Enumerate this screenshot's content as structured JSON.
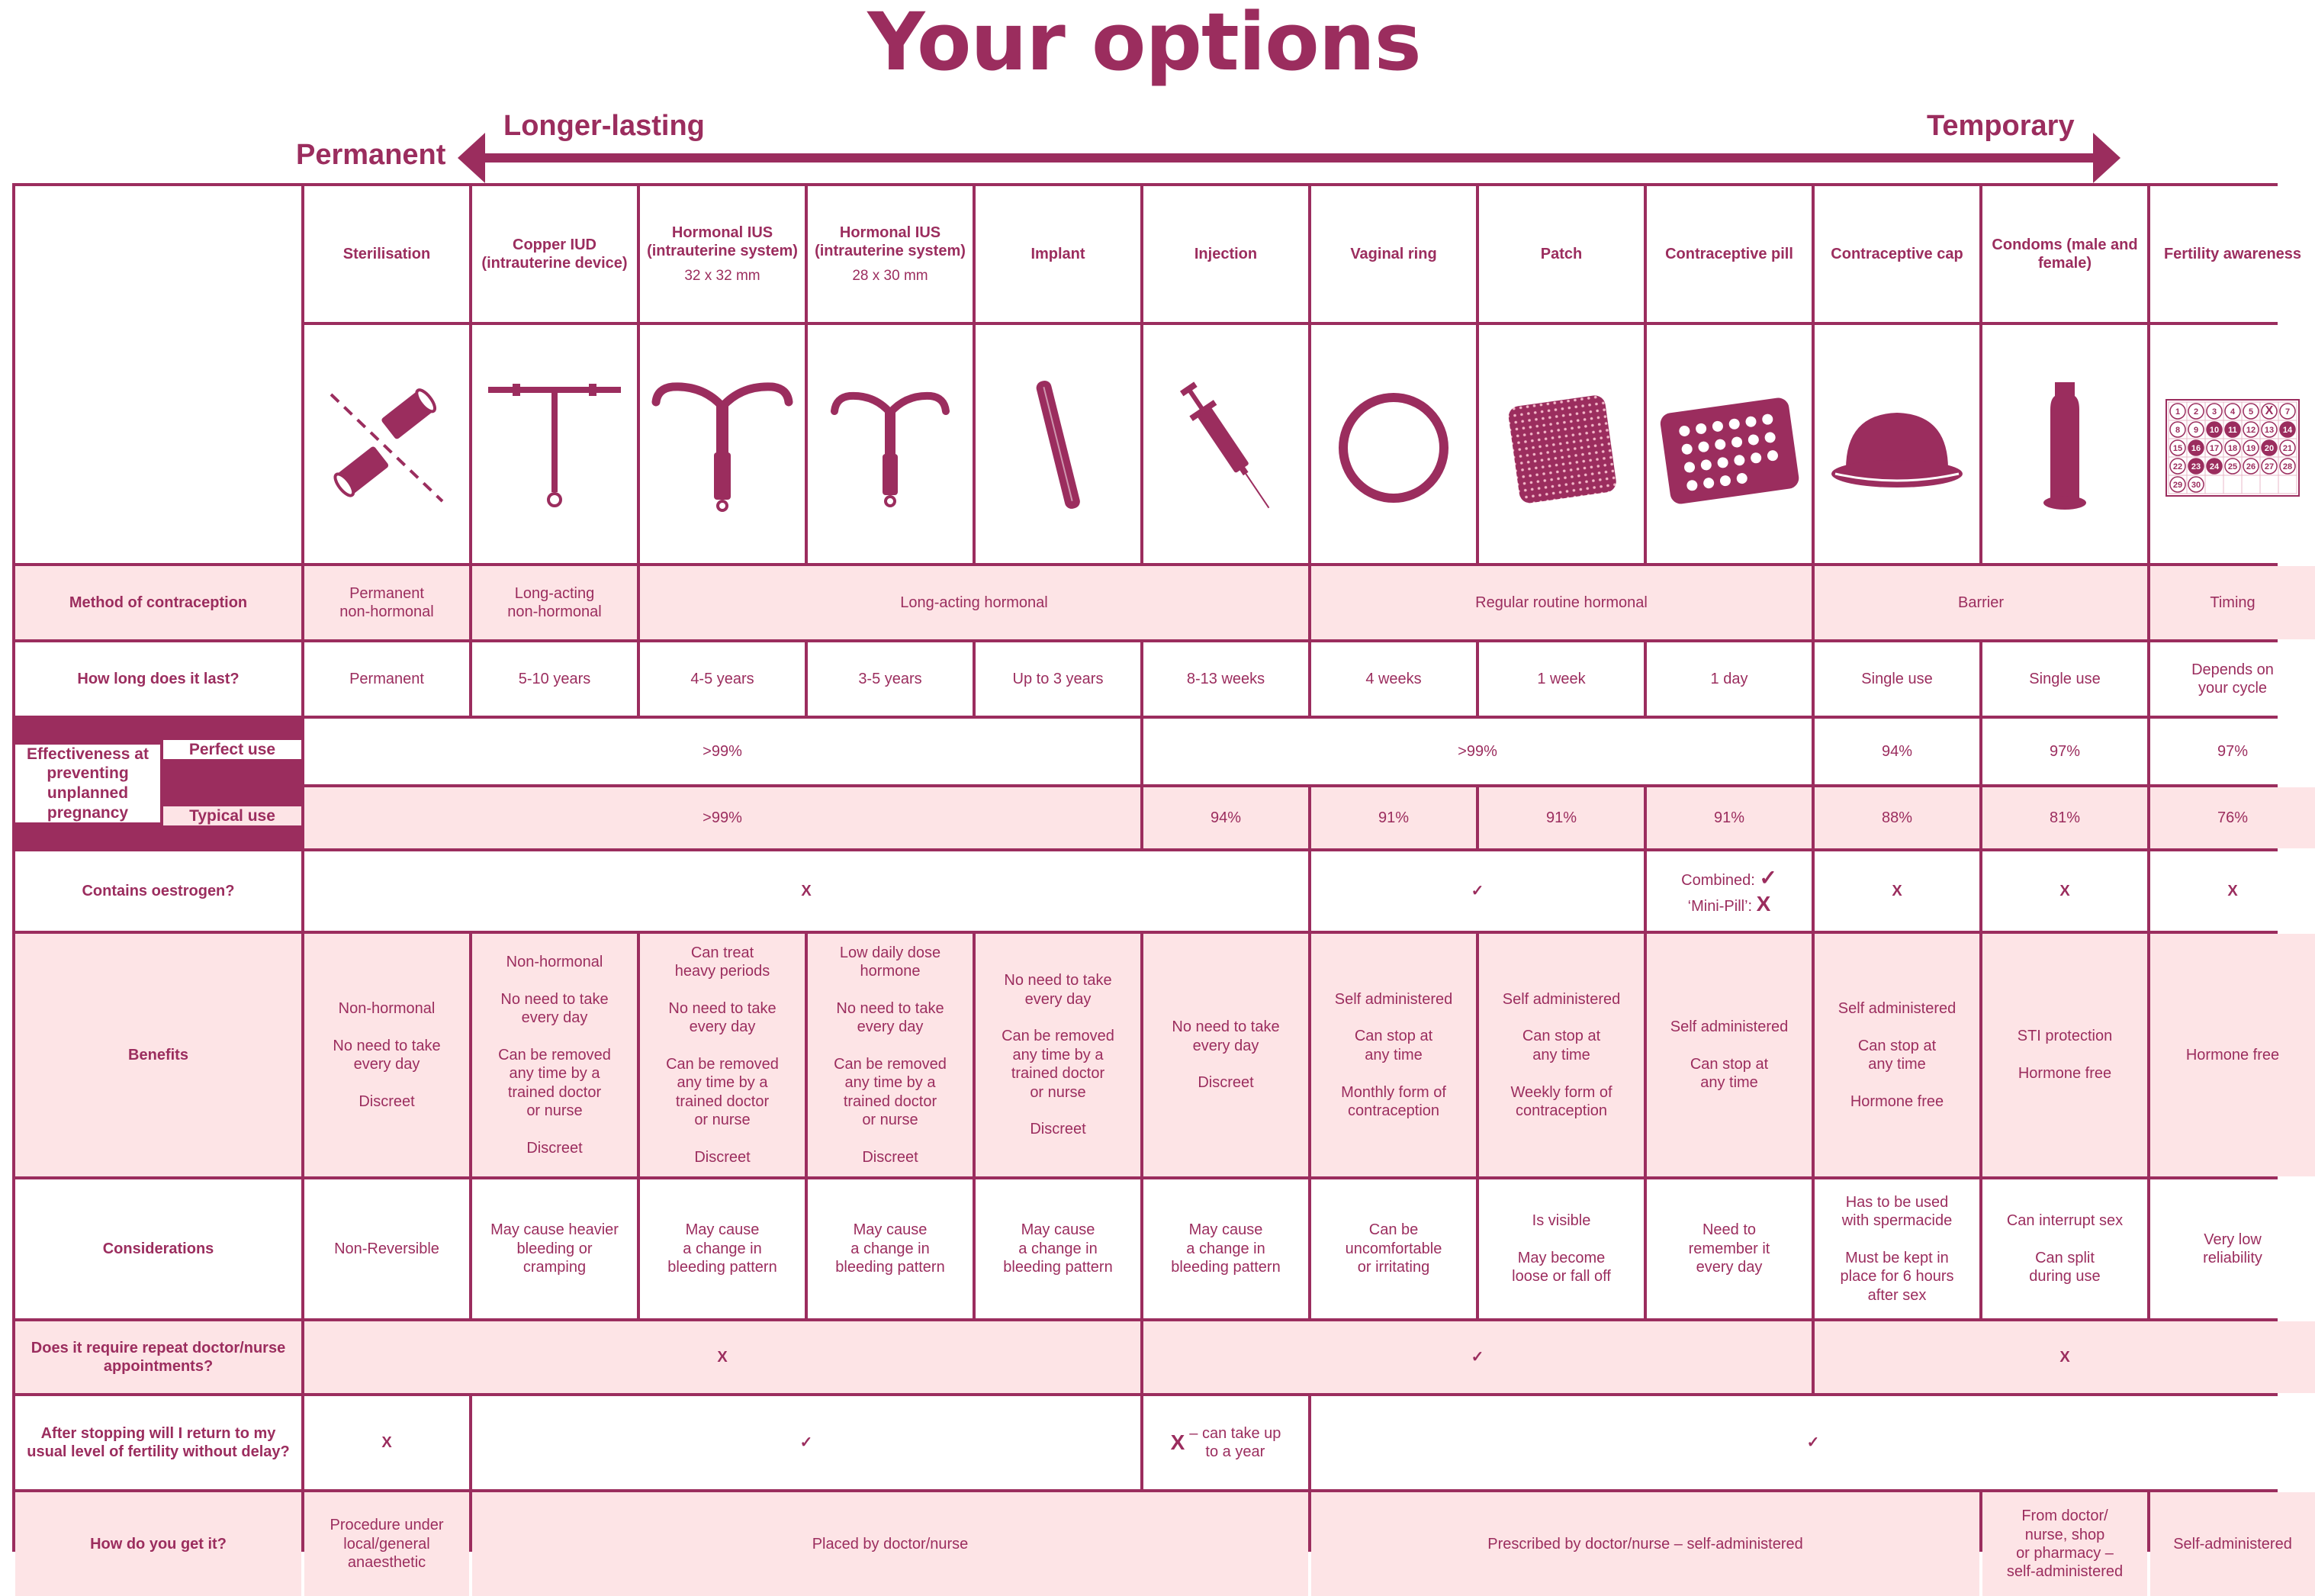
{
  "title": "Your options",
  "scale": {
    "permanent_label": "Permanent",
    "longer_label": "Longer-lasting",
    "temporary_label": "Temporary"
  },
  "colors": {
    "accent": "#9b2d5e",
    "pink": "#fde4e6",
    "white": "#ffffff"
  },
  "methods": [
    {
      "name": "Sterilisation",
      "icon": "sterilisation-icon"
    },
    {
      "name": "Copper IUD (intrauterine device)",
      "icon": "copper-iud-icon"
    },
    {
      "name": "Hormonal IUS (intrauterine system)",
      "size": "32 x 32 mm",
      "icon": "hormonal-ius-large-icon"
    },
    {
      "name": "Hormonal IUS (intrauterine system)",
      "size": "28 x 30 mm",
      "icon": "hormonal-ius-small-icon"
    },
    {
      "name": "Implant",
      "icon": "implant-icon"
    },
    {
      "name": "Injection",
      "icon": "syringe-icon"
    },
    {
      "name": "Vaginal ring",
      "icon": "ring-icon"
    },
    {
      "name": "Patch",
      "icon": "patch-icon"
    },
    {
      "name": "Contraceptive pill",
      "icon": "pill-pack-icon"
    },
    {
      "name": "Contraceptive cap",
      "icon": "cap-icon"
    },
    {
      "name": "Condoms (male and female)",
      "icon": "condom-icon"
    },
    {
      "name": "Fertility awareness",
      "icon": "calendar-icon"
    }
  ],
  "calendar": {
    "rows": [
      [
        "1",
        "2",
        "3",
        "4",
        "5",
        "X",
        "7"
      ],
      [
        "8",
        "9",
        "10",
        "11",
        "12",
        "13",
        "14"
      ],
      [
        "15",
        "16",
        "17",
        "18",
        "19",
        "20",
        "21"
      ],
      [
        "22",
        "23",
        "24",
        "25",
        "26",
        "27",
        "28"
      ],
      [
        "29",
        "30",
        "",
        "",
        "",
        "",
        ""
      ]
    ],
    "highlighted": [
      "10",
      "11",
      "14",
      "16",
      "20",
      "23",
      "24"
    ]
  },
  "marks": {
    "no": "X",
    "yes": "✓"
  },
  "rows": {
    "method": {
      "label": "Method of contraception",
      "cells": [
        "Permanent\nnon-hormonal",
        "Long-acting\nnon-hormonal",
        "Long-acting hormonal",
        "Regular routine hormonal",
        "Barrier",
        "Timing"
      ]
    },
    "duration": {
      "label": "How long does it last?",
      "cells": [
        "Permanent",
        "5-10 years",
        "4-5 years",
        "3-5 years",
        "Up to 3 years",
        "8-13 weeks",
        "4 weeks",
        "1 week",
        "1 day",
        "Single use",
        "Single use",
        "Depends on\nyour cycle"
      ]
    },
    "effectiveness": {
      "group_label": "Effectiveness at preventing unplanned pregnancy",
      "perfect_label": "Perfect use",
      "perfect_cells": [
        ">99%",
        ">99%",
        "94%",
        "97%",
        "97%"
      ],
      "typical_label": "Typical use",
      "typical_cells": [
        ">99%",
        "94%",
        "91%",
        "91%",
        "91%",
        "88%",
        "81%",
        "76%"
      ]
    },
    "oestrogen": {
      "label": "Contains oestrogen?",
      "combined_label": "Combined:",
      "minipill_label": "‘Mini-Pill’:"
    },
    "benefits": {
      "label": "Benefits",
      "cells": [
        "Non-hormonal\n\nNo need to take\nevery day\n\nDiscreet",
        "Non-hormonal\n\nNo need to take\nevery day\n\nCan be removed\nany time by a\ntrained doctor\nor nurse\n\nDiscreet",
        "Can treat\nheavy periods\n\nNo need to take\nevery day\n\nCan be removed\nany time by a\ntrained doctor\nor nurse\n\nDiscreet",
        "Low daily dose\nhormone\n\nNo need to take\nevery day\n\nCan be removed\nany time by a\ntrained doctor\nor nurse\n\nDiscreet",
        "No need to take\nevery day\n\nCan be removed\nany time by a\ntrained doctor\nor nurse\n\nDiscreet",
        "No need to take\nevery day\n\nDiscreet",
        "Self administered\n\nCan stop at\nany time\n\nMonthly form of\ncontraception",
        "Self administered\n\nCan stop at\nany time\n\nWeekly form of\ncontraception",
        "Self administered\n\nCan stop at\nany time",
        "Self administered\n\nCan stop at\nany time\n\nHormone free",
        "STI protection\n\nHormone free",
        "Hormone free"
      ]
    },
    "considerations": {
      "label": "Considerations",
      "cells": [
        "Non-Reversible",
        "May cause heavier\nbleeding or\ncramping",
        "May cause\na change in\nbleeding pattern",
        "May cause\na change in\nbleeding pattern",
        "May cause\na change in\nbleeding pattern",
        "May cause\na change in\nbleeding pattern",
        "Can be\nuncomfortable\nor irritating",
        "Is visible\n\nMay become\nloose or fall off",
        "Need to\nremember it\nevery day",
        "Has to be used\nwith spermacide\n\nMust be kept in\nplace for 6 hours\nafter sex",
        "Can interrupt sex\n\nCan split\nduring use",
        "Very low\nreliability"
      ]
    },
    "appointments": {
      "label": "Does it require repeat doctor/nurse appointments?"
    },
    "fertility": {
      "label": "After stopping will I return to my usual level of fertility without delay?",
      "injection_note": "– can take up\nto a year"
    },
    "access": {
      "label": "How do you get it?",
      "cells": [
        "Procedure under\nlocal/general\nanaesthetic",
        "Placed by doctor/nurse",
        "Prescribed by doctor/nurse – self-administered",
        "From doctor/\nnurse, shop\nor pharmacy –\nself-administered",
        "Self-administered"
      ]
    }
  }
}
